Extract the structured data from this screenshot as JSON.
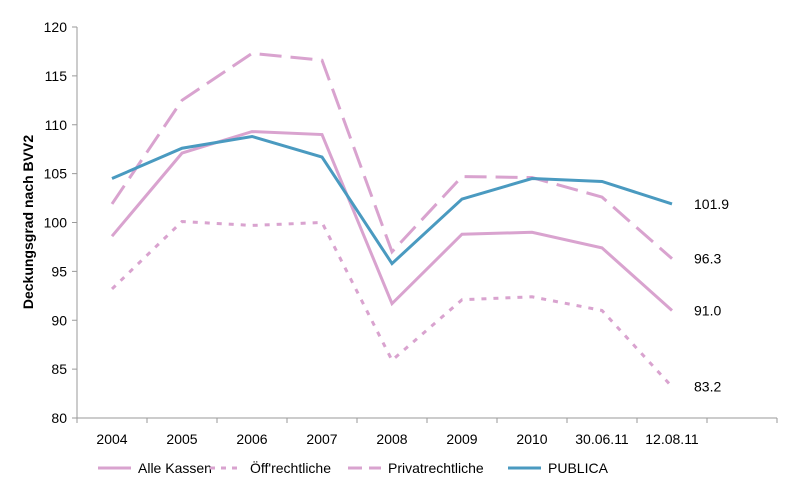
{
  "chart_data": {
    "type": "line",
    "ylabel": "Deckungsgrad nach BVV2",
    "xlabel": "",
    "ylim": [
      80,
      120
    ],
    "yticks": [
      "80",
      "85",
      "90",
      "95",
      "100",
      "105",
      "110",
      "115",
      "120"
    ],
    "categories": [
      "2004",
      "2005",
      "2006",
      "2007",
      "2008",
      "2009",
      "2010",
      "30.06.11",
      "12.08.11"
    ],
    "grid": false,
    "legend_position": "bottom",
    "series": [
      {
        "name": "Alle Kassen",
        "style": "solid",
        "color": "#d9a3cf",
        "values": [
          98.6,
          107.1,
          109.3,
          109.0,
          91.7,
          98.8,
          99.0,
          97.4,
          91.0
        ],
        "end_label": "91.0"
      },
      {
        "name": "Öff'rechtliche",
        "style": "dotted",
        "color": "#d9a3cf",
        "values": [
          93.2,
          100.1,
          99.7,
          100.0,
          85.9,
          92.1,
          92.4,
          91.0,
          83.2
        ],
        "end_label": "83.2"
      },
      {
        "name": "Privatrechtliche",
        "style": "dashed",
        "color": "#d9a3cf",
        "values": [
          101.9,
          112.5,
          117.3,
          116.6,
          97.0,
          104.7,
          104.6,
          102.6,
          96.3
        ],
        "end_label": "96.3"
      },
      {
        "name": "PUBLICA",
        "style": "solid",
        "color": "#4a9ac0",
        "values": [
          104.5,
          107.6,
          108.8,
          106.7,
          95.8,
          102.4,
          104.5,
          104.2,
          101.9
        ],
        "end_label": "101.9"
      }
    ]
  }
}
